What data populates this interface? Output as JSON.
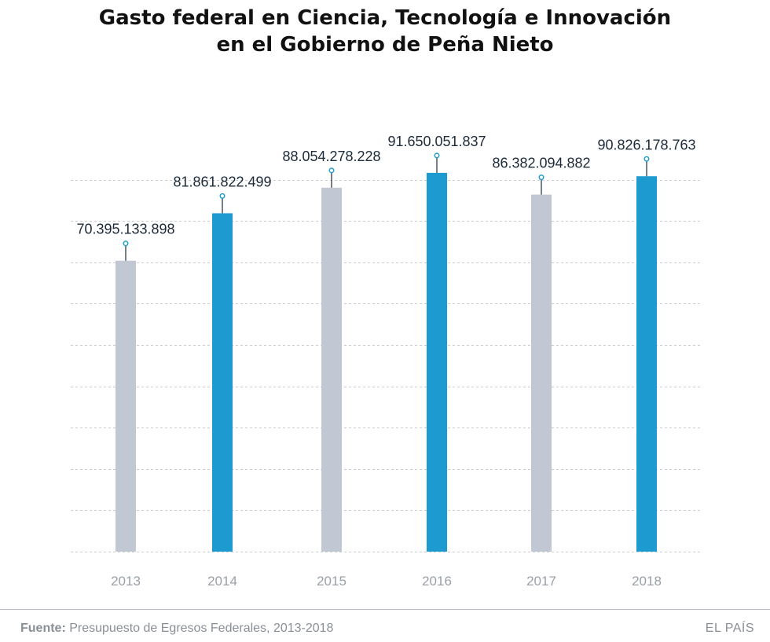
{
  "title": {
    "line1": "Gasto federal en Ciencia, Tecnología e Innovación",
    "line2": "en el Gobierno de Peña Nieto"
  },
  "chart_data": {
    "type": "bar",
    "categories": [
      "2013",
      "2014",
      "2015",
      "2016",
      "2017",
      "2018"
    ],
    "values": [
      70395133898,
      81861822499,
      88054278228,
      91650051837,
      86382094882,
      90826178763
    ],
    "value_labels": [
      "70.395.133.898",
      "81.861.822.499",
      "88.054.278.228",
      "91.650.051.837",
      "86.382.094.882",
      "90.826.178.763"
    ],
    "bar_colors": [
      "#c1c8d3",
      "#1d9bd1",
      "#c1c8d3",
      "#1d9bd1",
      "#c1c8d3",
      "#1d9bd1"
    ],
    "ylim": [
      0,
      100000000000
    ],
    "grid": true,
    "grid_style": "dashed"
  },
  "footer": {
    "source_label": "Fuente:",
    "source_text": "Presupuesto de Egresos Federales, 2013-2018",
    "brand": "EL PAÍS"
  },
  "colors": {
    "accent": "#1d9bd1",
    "muted_bar": "#c1c8d3",
    "label_text": "#1c2a39",
    "axis_text": "#9aa0a8",
    "grid": "#c9ccd1"
  }
}
